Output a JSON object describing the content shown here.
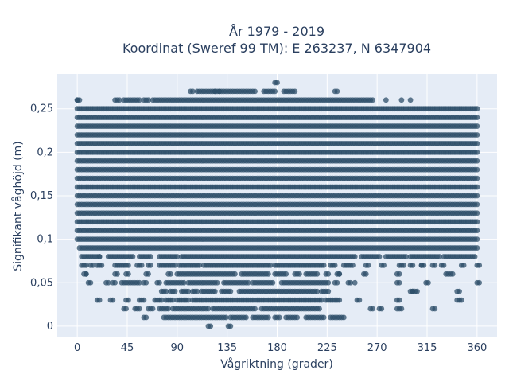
{
  "chart_data": {
    "type": "scatter",
    "title": [
      "År 1979 - 2019",
      "Koordinat (Sweref 99 TM): E 263237, N 6347904"
    ],
    "xlabel": "Vågriktning (grader)",
    "ylabel": "Signifikant våghöjd (m)",
    "xlim": [
      -18,
      378
    ],
    "ylim": [
      -0.012,
      0.29
    ],
    "xticks": [
      0,
      45,
      90,
      135,
      180,
      225,
      270,
      315,
      360
    ],
    "xtick_labels": [
      "0",
      "45",
      "90",
      "135",
      "180",
      "225",
      "270",
      "315",
      "360"
    ],
    "yticks": [
      0,
      0.05,
      0.1,
      0.15,
      0.2,
      0.25
    ],
    "ytick_labels": [
      "0",
      "0,05",
      "0,1",
      "0,15",
      "0,2",
      "0,25"
    ],
    "grid": true,
    "colors": {
      "plot_bg": "#e5ecf6",
      "grid": "#ffffff",
      "marker": "#2e4f6a",
      "text": "#2a3f5f"
    },
    "bands": [
      {
        "y": 0.0,
        "x_ranges": [
          [
            118,
            120
          ],
          [
            136,
            138
          ]
        ]
      },
      {
        "y": 0.01,
        "x_ranges": [
          [
            60,
            62
          ],
          [
            78,
            94
          ],
          [
            96,
            110
          ],
          [
            112,
            135
          ],
          [
            138,
            152
          ],
          [
            158,
            172
          ],
          [
            178,
            182
          ],
          [
            188,
            198
          ],
          [
            206,
            222
          ],
          [
            228,
            240
          ]
        ]
      },
      {
        "y": 0.02,
        "x_ranges": [
          [
            42,
            44
          ],
          [
            52,
            56
          ],
          [
            64,
            68
          ],
          [
            74,
            82
          ],
          [
            86,
            118
          ],
          [
            122,
            160
          ],
          [
            166,
            210
          ],
          [
            212,
            218
          ],
          [
            264,
            266
          ],
          [
            272,
            274
          ],
          [
            288,
            292
          ],
          [
            320,
            322
          ]
        ]
      },
      {
        "y": 0.03,
        "x_ranges": [
          [
            18,
            20
          ],
          [
            30,
            32
          ],
          [
            44,
            46
          ],
          [
            56,
            60
          ],
          [
            70,
            76
          ],
          [
            80,
            86
          ],
          [
            90,
            100
          ],
          [
            104,
            220
          ],
          [
            224,
            236
          ],
          [
            252,
            254
          ],
          [
            288,
            290
          ],
          [
            342,
            346
          ]
        ]
      },
      {
        "y": 0.04,
        "x_ranges": [
          [
            76,
            80
          ],
          [
            84,
            88
          ],
          [
            94,
            100
          ],
          [
            104,
            108
          ],
          [
            112,
            124
          ],
          [
            130,
            138
          ],
          [
            146,
            216
          ],
          [
            220,
            226
          ],
          [
            300,
            302
          ],
          [
            302,
            306
          ],
          [
            342,
            344
          ]
        ]
      },
      {
        "y": 0.05,
        "x_ranges": [
          [
            10,
            12
          ],
          [
            26,
            28
          ],
          [
            32,
            34
          ],
          [
            40,
            56
          ],
          [
            60,
            62
          ],
          [
            72,
            74
          ],
          [
            80,
            96
          ],
          [
            100,
            126
          ],
          [
            132,
            154
          ],
          [
            158,
            176
          ],
          [
            184,
            226
          ],
          [
            232,
            234
          ],
          [
            244,
            246
          ],
          [
            288,
            290
          ],
          [
            314,
            316
          ],
          [
            360,
            362
          ]
        ]
      },
      {
        "y": 0.06,
        "x_ranges": [
          [
            6,
            8
          ],
          [
            34,
            36
          ],
          [
            44,
            46
          ],
          [
            62,
            64
          ],
          [
            82,
            84
          ],
          [
            90,
            142
          ],
          [
            148,
            172
          ],
          [
            178,
            188
          ],
          [
            196,
            200
          ],
          [
            206,
            216
          ],
          [
            224,
            226
          ],
          [
            234,
            236
          ],
          [
            258,
            260
          ],
          [
            288,
            290
          ],
          [
            332,
            334
          ],
          [
            336,
            338
          ]
        ]
      },
      {
        "y": 0.07,
        "x_ranges": [
          [
            4,
            8
          ],
          [
            12,
            14
          ],
          [
            18,
            22
          ],
          [
            34,
            40
          ],
          [
            42,
            46
          ],
          [
            54,
            58
          ],
          [
            64,
            66
          ],
          [
            74,
            88
          ],
          [
            92,
            110
          ],
          [
            114,
            174
          ],
          [
            178,
            222
          ],
          [
            228,
            232
          ],
          [
            240,
            248
          ],
          [
            260,
            262
          ],
          [
            274,
            276
          ],
          [
            290,
            294
          ],
          [
            300,
            302
          ],
          [
            310,
            312
          ],
          [
            320,
            322
          ],
          [
            328,
            330
          ],
          [
            346,
            348
          ],
          [
            360,
            362
          ]
        ]
      },
      {
        "y": 0.08,
        "x_ranges": [
          [
            4,
            20
          ],
          [
            28,
            50
          ],
          [
            56,
            66
          ],
          [
            74,
            90
          ],
          [
            94,
            250
          ],
          [
            256,
            272
          ],
          [
            278,
            282
          ],
          [
            284,
            288
          ],
          [
            290,
            296
          ],
          [
            300,
            310
          ],
          [
            312,
            326
          ],
          [
            330,
            350
          ],
          [
            352,
            358
          ]
        ]
      },
      {
        "y": 0.09,
        "x_ranges": [
          [
            2,
            360
          ]
        ]
      },
      {
        "y": 0.1,
        "x_ranges": [
          [
            0,
            360
          ]
        ]
      },
      {
        "y": 0.11,
        "x_ranges": [
          [
            0,
            360
          ]
        ]
      },
      {
        "y": 0.12,
        "x_ranges": [
          [
            0,
            360
          ]
        ]
      },
      {
        "y": 0.13,
        "x_ranges": [
          [
            0,
            360
          ]
        ]
      },
      {
        "y": 0.14,
        "x_ranges": [
          [
            0,
            360
          ]
        ]
      },
      {
        "y": 0.15,
        "x_ranges": [
          [
            0,
            360
          ]
        ]
      },
      {
        "y": 0.16,
        "x_ranges": [
          [
            0,
            360
          ]
        ]
      },
      {
        "y": 0.17,
        "x_ranges": [
          [
            0,
            360
          ]
        ]
      },
      {
        "y": 0.18,
        "x_ranges": [
          [
            0,
            360
          ]
        ]
      },
      {
        "y": 0.19,
        "x_ranges": [
          [
            0,
            360
          ]
        ]
      },
      {
        "y": 0.2,
        "x_ranges": [
          [
            0,
            360
          ]
        ]
      },
      {
        "y": 0.21,
        "x_ranges": [
          [
            0,
            360
          ]
        ]
      },
      {
        "y": 0.22,
        "x_ranges": [
          [
            0,
            360
          ]
        ]
      },
      {
        "y": 0.23,
        "x_ranges": [
          [
            0,
            360
          ]
        ]
      },
      {
        "y": 0.24,
        "x_ranges": [
          [
            0,
            360
          ]
        ]
      },
      {
        "y": 0.25,
        "x_ranges": [
          [
            0,
            360
          ]
        ]
      },
      {
        "y": 0.26,
        "x_ranges": [
          [
            0,
            2
          ],
          [
            34,
            38
          ],
          [
            42,
            56
          ],
          [
            60,
            64
          ],
          [
            68,
            260
          ],
          [
            262,
            266
          ]
        ]
      },
      {
        "y": 0.27,
        "x_ranges": [
          [
            102,
            104
          ],
          [
            108,
            160
          ],
          [
            168,
            178
          ],
          [
            186,
            196
          ],
          [
            232,
            234
          ]
        ]
      },
      {
        "y": 0.28,
        "x_ranges": [
          [
            178,
            180
          ]
        ]
      }
    ],
    "extra_points": [
      [
        0,
        0.26
      ],
      [
        278,
        0.26
      ],
      [
        292,
        0.26
      ],
      [
        300,
        0.26
      ],
      [
        20,
        0.08
      ],
      [
        8,
        0.06
      ],
      [
        250,
        0.05
      ],
      [
        236,
        0.06
      ],
      [
        310,
        0.07
      ],
      [
        124,
        0.27
      ],
      [
        128,
        0.27
      ]
    ]
  }
}
